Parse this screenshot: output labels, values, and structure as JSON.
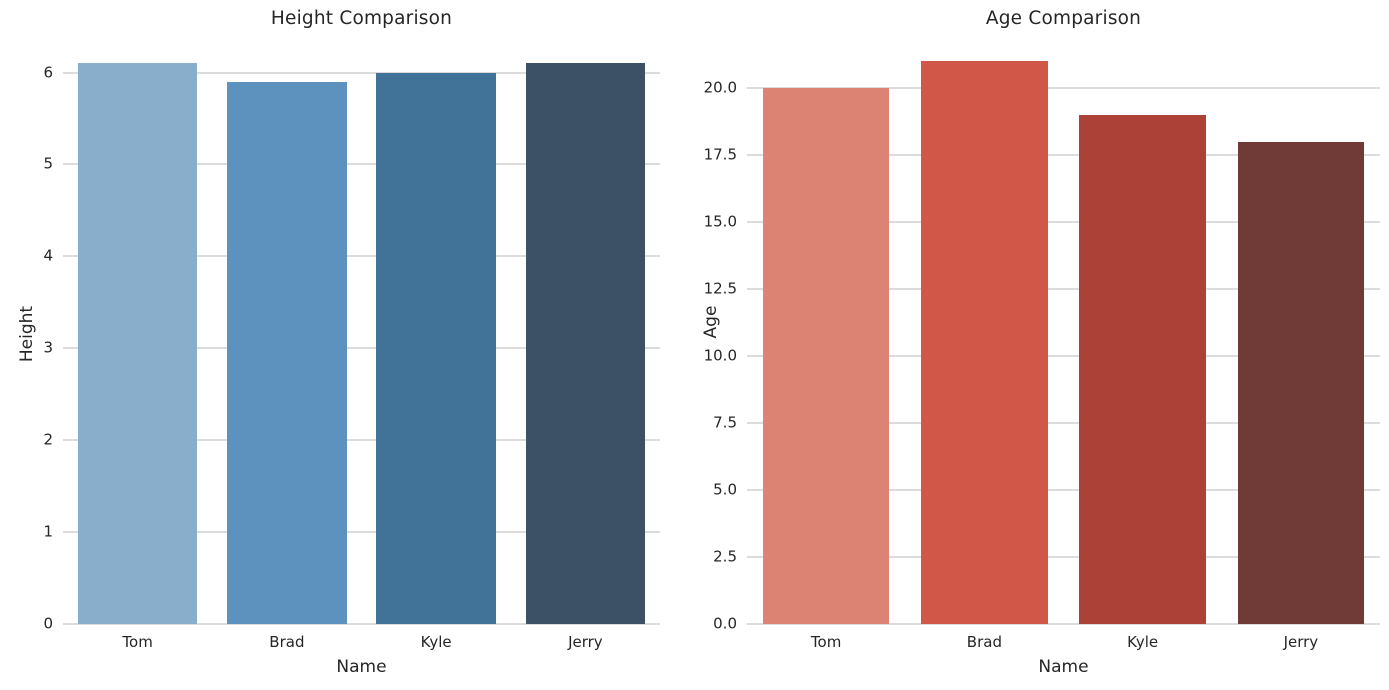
{
  "figure": {
    "background": "#ffffff",
    "text_color": "#262626",
    "grid_color": "#dcdcdc"
  },
  "chart_data": [
    {
      "type": "bar",
      "title": "Height Comparison",
      "xlabel": "Name",
      "ylabel": "Height",
      "categories": [
        "Tom",
        "Brad",
        "Kyle",
        "Jerry"
      ],
      "values": [
        6.1,
        5.9,
        6.0,
        6.1
      ],
      "bar_colors": [
        "#89aecb",
        "#5d92be",
        "#417399",
        "#3c5166"
      ],
      "ylim": [
        0,
        6.3
      ],
      "yticks": [
        0,
        1,
        2,
        3,
        4,
        5,
        6
      ],
      "ytick_labels": [
        "0",
        "1",
        "2",
        "3",
        "4",
        "5",
        "6"
      ],
      "grid": "horizontal",
      "legend": "none",
      "spines": "none",
      "bar_width_fraction": 0.8
    },
    {
      "type": "bar",
      "title": "Age Comparison",
      "xlabel": "Name",
      "ylabel": "Age",
      "categories": [
        "Tom",
        "Brad",
        "Kyle",
        "Jerry"
      ],
      "values": [
        20,
        21,
        19,
        18
      ],
      "bar_colors": [
        "#dd8374",
        "#d15749",
        "#ac4138",
        "#703a36"
      ],
      "ylim": [
        0,
        21.6
      ],
      "yticks": [
        0,
        2.5,
        5,
        7.5,
        10,
        12.5,
        15,
        17.5,
        20
      ],
      "ytick_labels": [
        "0.0",
        "2.5",
        "5.0",
        "7.5",
        "10.0",
        "12.5",
        "15.0",
        "17.5",
        "20.0"
      ],
      "grid": "horizontal",
      "legend": "none",
      "spines": "none",
      "bar_width_fraction": 0.8
    }
  ]
}
